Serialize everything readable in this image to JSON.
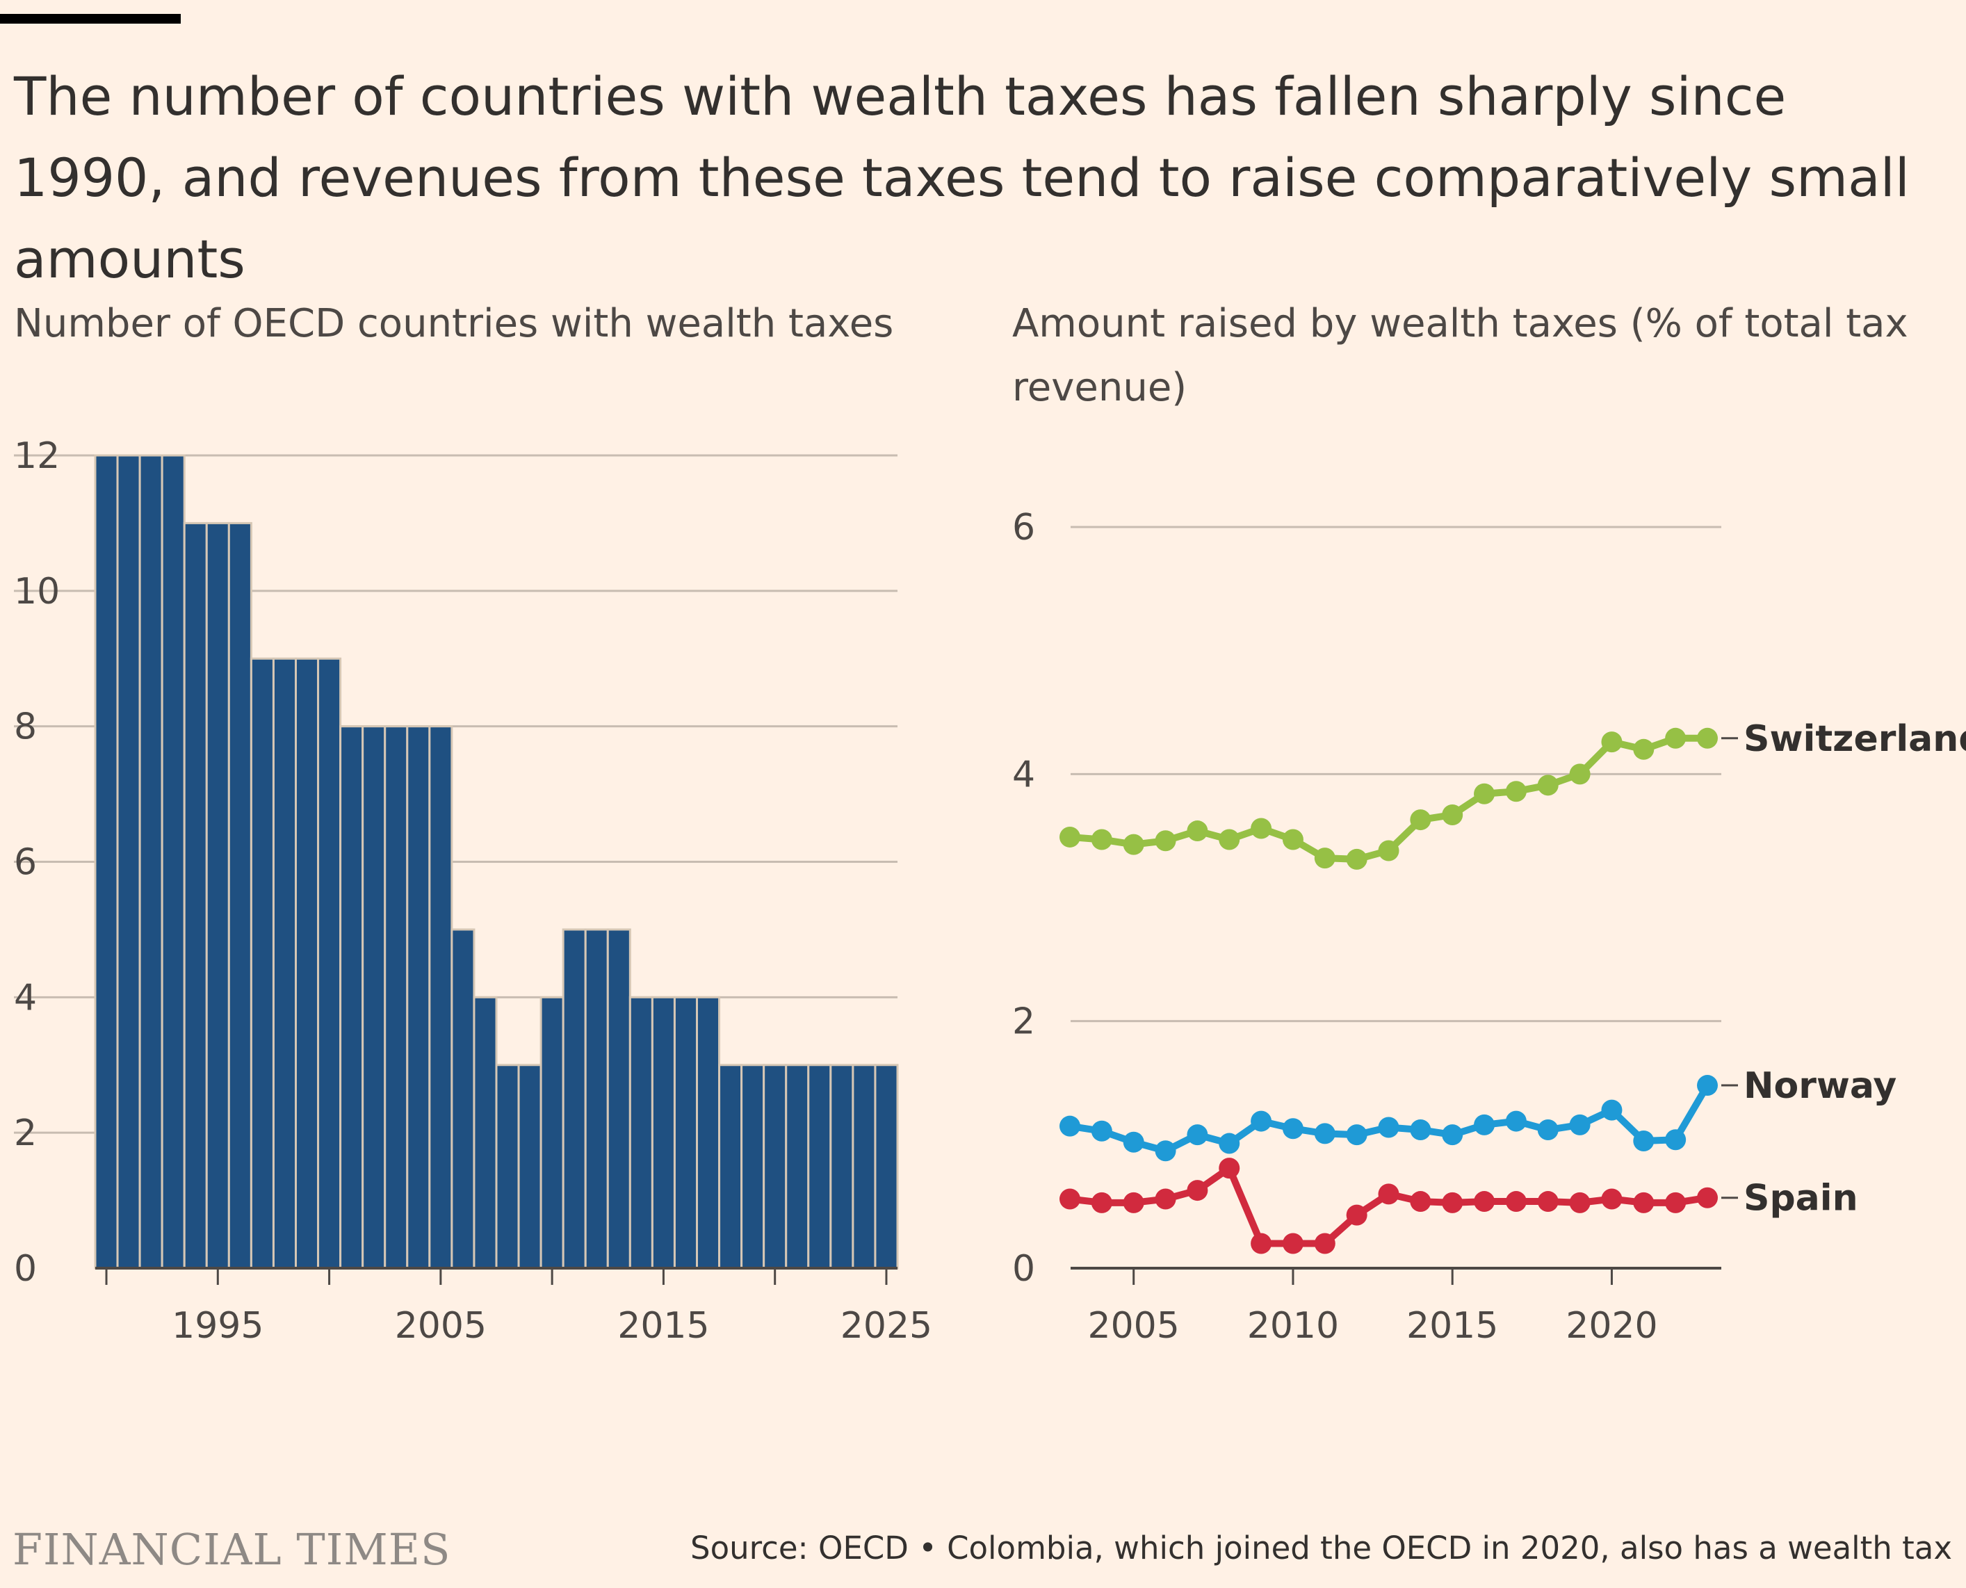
{
  "headline": "The number of countries with wealth taxes has fallen sharply since 1990, and revenues from these taxes tend to raise comparatively small amounts",
  "colors": {
    "background": "#FFF1E5",
    "bar": "#1F5081",
    "bar_stroke": "#D6C7B5",
    "switzerland": "#96C045",
    "norway": "#1F9AD6",
    "spain": "#D12A3E",
    "grid": "#C8BCB1"
  },
  "footer": {
    "logo": "FINANCIAL TIMES",
    "source": "Source: OECD • Colombia, which joined the OECD in 2020, also has a wealth tax"
  },
  "chart_data": [
    {
      "type": "bar",
      "title": "Number of OECD countries with wealth taxes",
      "x": [
        1990,
        1991,
        1992,
        1993,
        1994,
        1995,
        1996,
        1997,
        1998,
        1999,
        2000,
        2001,
        2002,
        2003,
        2004,
        2005,
        2006,
        2007,
        2008,
        2009,
        2010,
        2011,
        2012,
        2013,
        2014,
        2015,
        2016,
        2017,
        2018,
        2019,
        2020,
        2021,
        2022,
        2023,
        2024,
        2025
      ],
      "values": [
        12,
        12,
        12,
        12,
        11,
        11,
        11,
        9,
        9,
        9,
        9,
        8,
        8,
        8,
        8,
        8,
        5,
        4,
        3,
        3,
        4,
        5,
        5,
        5,
        4,
        4,
        4,
        4,
        3,
        3,
        3,
        3,
        3,
        3,
        3,
        3
      ],
      "ylim": [
        0,
        12
      ],
      "yticks": [
        0,
        2,
        4,
        6,
        8,
        10,
        12
      ],
      "xticks": [
        1995,
        2005,
        2015,
        2025
      ],
      "xlabel": "",
      "ylabel": "",
      "grid": true
    },
    {
      "type": "line",
      "title": "Amount raised by wealth taxes (% of total tax revenue)",
      "x": [
        2003,
        2004,
        2005,
        2006,
        2007,
        2008,
        2009,
        2010,
        2011,
        2012,
        2013,
        2014,
        2015,
        2016,
        2017,
        2018,
        2019,
        2020,
        2021,
        2022,
        2023
      ],
      "series": [
        {
          "name": "Switzerland",
          "values": [
            3.49,
            3.47,
            3.43,
            3.46,
            3.54,
            3.47,
            3.56,
            3.47,
            3.32,
            3.31,
            3.38,
            3.63,
            3.67,
            3.84,
            3.86,
            3.91,
            4.0,
            4.26,
            4.2,
            4.29,
            4.29
          ]
        },
        {
          "name": "Norway",
          "values": [
            1.15,
            1.11,
            1.02,
            0.95,
            1.08,
            1.01,
            1.19,
            1.13,
            1.09,
            1.08,
            1.14,
            1.12,
            1.08,
            1.16,
            1.19,
            1.12,
            1.16,
            1.28,
            1.03,
            1.04,
            1.48
          ]
        },
        {
          "name": "Spain",
          "values": [
            0.56,
            0.53,
            0.53,
            0.56,
            0.63,
            0.81,
            0.2,
            0.2,
            0.2,
            0.43,
            0.6,
            0.54,
            0.53,
            0.54,
            0.54,
            0.54,
            0.53,
            0.56,
            0.53,
            0.53,
            0.57
          ]
        }
      ],
      "ylim": [
        0,
        6
      ],
      "yticks": [
        0,
        2,
        4,
        6
      ],
      "xticks": [
        2005,
        2010,
        2015,
        2020
      ],
      "xlabel": "",
      "ylabel": "",
      "grid": true,
      "legend": "direct labels at line ends"
    }
  ]
}
